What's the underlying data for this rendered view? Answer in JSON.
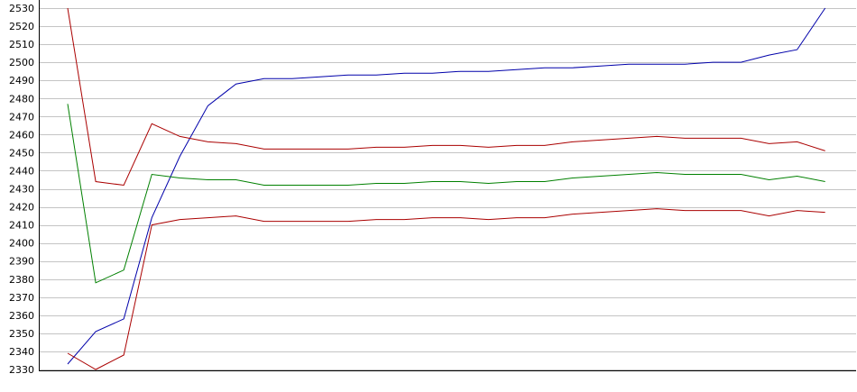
{
  "chart_data": {
    "type": "line",
    "title": "",
    "xlabel": "",
    "ylabel": "",
    "ylim": [
      2330,
      2530
    ],
    "yticks": [
      2330,
      2340,
      2350,
      2360,
      2370,
      2380,
      2390,
      2400,
      2410,
      2420,
      2430,
      2440,
      2450,
      2460,
      2470,
      2480,
      2490,
      2500,
      2510,
      2520,
      2530
    ],
    "grid": true,
    "legend": "none",
    "x": [
      1,
      2,
      3,
      4,
      5,
      6,
      7,
      8,
      9,
      10,
      11,
      12,
      13,
      14,
      15,
      16,
      17,
      18,
      19,
      20,
      21,
      22,
      23,
      24,
      25,
      26,
      27,
      28
    ],
    "series": [
      {
        "color": "#0000aa",
        "values": [
          2333,
          2351,
          2358,
          2414,
          2448,
          2476,
          2488,
          2491,
          2491,
          2492,
          2493,
          2493,
          2494,
          2494,
          2495,
          2495,
          2496,
          2497,
          2497,
          2498,
          2499,
          2499,
          2499,
          2500,
          2500,
          2504,
          2507,
          2530
        ]
      },
      {
        "color": "#aa0000",
        "values": [
          2530,
          2434,
          2432,
          2466,
          2459,
          2456,
          2455,
          2452,
          2452,
          2452,
          2452,
          2453,
          2453,
          2454,
          2454,
          2453,
          2454,
          2454,
          2456,
          2457,
          2458,
          2459,
          2458,
          2458,
          2458,
          2455,
          2456,
          2451
        ]
      },
      {
        "color": "#008000",
        "values": [
          2477,
          2378,
          2385,
          2438,
          2436,
          2435,
          2435,
          2432,
          2432,
          2432,
          2432,
          2433,
          2433,
          2434,
          2434,
          2433,
          2434,
          2434,
          2436,
          2437,
          2438,
          2439,
          2438,
          2438,
          2438,
          2435,
          2437,
          2434
        ]
      },
      {
        "color": "#aa0000",
        "values": [
          2339,
          2330,
          2338,
          2410,
          2413,
          2414,
          2415,
          2412,
          2412,
          2412,
          2412,
          2413,
          2413,
          2414,
          2414,
          2413,
          2414,
          2414,
          2416,
          2417,
          2418,
          2419,
          2418,
          2418,
          2418,
          2415,
          2418,
          2417
        ]
      }
    ]
  }
}
